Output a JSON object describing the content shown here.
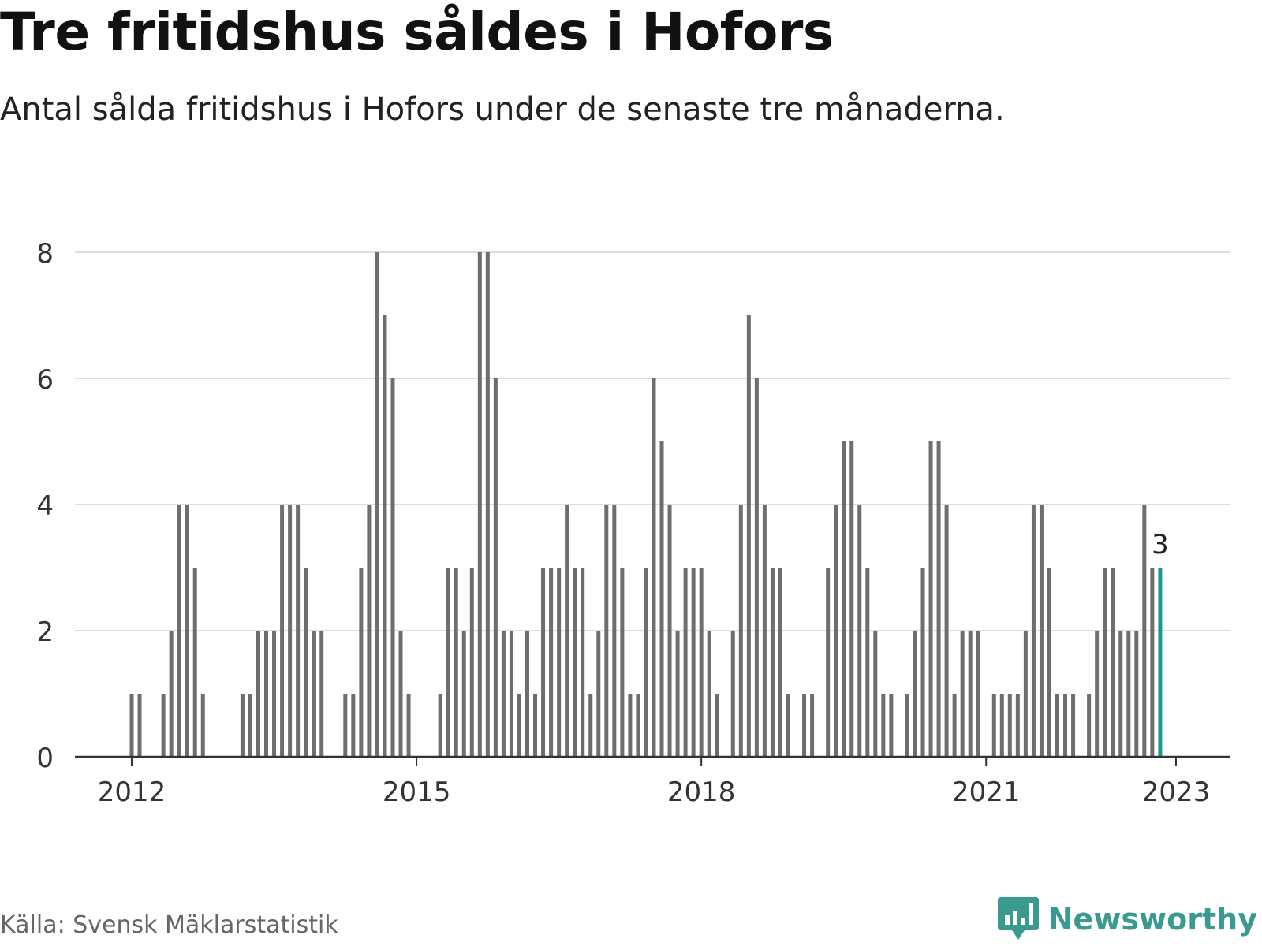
{
  "title": "Tre fritidshus såldes i Hofors",
  "subtitle": "Antal sålda fritidshus i Hofors under de senaste tre månaderna.",
  "source": "Källa: Svensk Mäklarstatistik",
  "brand": {
    "name": "Newsworthy",
    "icon": "newsworthy-logo-icon"
  },
  "colors": {
    "bar": "#6e6e6e",
    "highlight": "#17998b",
    "grid": "#dddddd",
    "axis": "#333333",
    "text": "#333333"
  },
  "chart_data": {
    "type": "bar",
    "x_start": "2012-01",
    "x_end": "2023-01",
    "ylim": [
      0,
      8
    ],
    "yticks": [
      0,
      2,
      4,
      6,
      8
    ],
    "xticks": [
      "2012",
      "2015",
      "2018",
      "2021",
      "2023"
    ],
    "grid": true,
    "values": [
      1,
      1,
      0,
      0,
      1,
      2,
      4,
      4,
      3,
      1,
      0,
      0,
      0,
      0,
      1,
      1,
      2,
      2,
      2,
      4,
      4,
      4,
      3,
      2,
      2,
      0,
      0,
      1,
      1,
      3,
      4,
      8,
      7,
      6,
      2,
      1,
      0,
      0,
      0,
      1,
      3,
      3,
      2,
      3,
      8,
      8,
      6,
      2,
      2,
      1,
      2,
      1,
      3,
      3,
      3,
      4,
      3,
      3,
      1,
      2,
      4,
      4,
      3,
      1,
      1,
      3,
      6,
      5,
      4,
      2,
      3,
      3,
      3,
      2,
      1,
      0,
      2,
      4,
      7,
      6,
      4,
      3,
      3,
      1,
      0,
      1,
      1,
      0,
      3,
      4,
      5,
      5,
      4,
      3,
      2,
      1,
      1,
      0,
      1,
      2,
      3,
      5,
      5,
      4,
      1,
      2,
      2,
      2,
      0,
      1,
      1,
      1,
      1,
      2,
      4,
      4,
      3,
      1,
      1,
      1,
      0,
      1,
      2,
      3,
      3,
      2,
      2,
      2,
      4,
      3,
      3
    ],
    "highlight": {
      "label": "3"
    }
  }
}
